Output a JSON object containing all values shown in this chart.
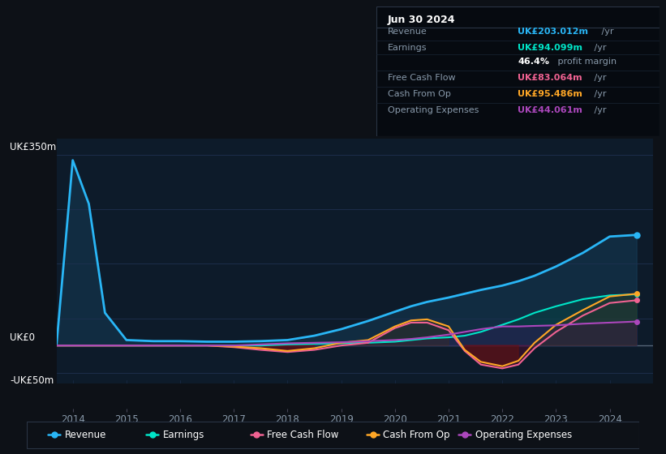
{
  "bg_color": "#0d1117",
  "chart_bg": "#0d1b2a",
  "text_color": "#8899aa",
  "ylim": [
    -70,
    380
  ],
  "years": [
    2013.7,
    2014.0,
    2014.3,
    2014.6,
    2015.0,
    2015.5,
    2016.0,
    2016.5,
    2017.0,
    2017.5,
    2018.0,
    2018.5,
    2019.0,
    2019.5,
    2020.0,
    2020.3,
    2020.6,
    2021.0,
    2021.3,
    2021.6,
    2022.0,
    2022.3,
    2022.6,
    2023.0,
    2023.5,
    2024.0,
    2024.5
  ],
  "revenue": [
    3,
    340,
    260,
    60,
    10,
    8,
    8,
    7,
    7,
    8,
    10,
    18,
    30,
    45,
    62,
    72,
    80,
    88,
    95,
    102,
    110,
    118,
    128,
    145,
    170,
    200,
    203
  ],
  "earnings": [
    0,
    0,
    0,
    0,
    0,
    0,
    0,
    0,
    0,
    0,
    2,
    3,
    4,
    5,
    7,
    10,
    13,
    15,
    18,
    25,
    38,
    48,
    60,
    72,
    85,
    92,
    94
  ],
  "free_cash_flow": [
    0,
    0,
    0,
    0,
    0,
    0,
    0,
    0,
    -3,
    -8,
    -12,
    -8,
    0,
    5,
    32,
    42,
    42,
    28,
    -10,
    -35,
    -42,
    -35,
    -5,
    25,
    55,
    78,
    83
  ],
  "cash_from_op": [
    0,
    0,
    0,
    0,
    0,
    0,
    0,
    0,
    -2,
    -5,
    -10,
    -5,
    5,
    10,
    35,
    46,
    48,
    35,
    -8,
    -30,
    -38,
    -28,
    5,
    38,
    65,
    90,
    95
  ],
  "operating_expenses": [
    0,
    0,
    0,
    0,
    0,
    0,
    0,
    0,
    0,
    2,
    4,
    5,
    6,
    8,
    10,
    12,
    15,
    20,
    25,
    30,
    35,
    35,
    36,
    37,
    40,
    42,
    44
  ],
  "revenue_color": "#29b6f6",
  "earnings_color": "#00e5c8",
  "fcf_color": "#f06292",
  "cashop_color": "#ffa726",
  "opex_color": "#ab47bc",
  "legend_items": [
    "Revenue",
    "Earnings",
    "Free Cash Flow",
    "Cash From Op",
    "Operating Expenses"
  ],
  "legend_colors": [
    "#29b6f6",
    "#00e5c8",
    "#f06292",
    "#ffa726",
    "#ab47bc"
  ],
  "info_box_title": "Jun 30 2024",
  "info_rows": [
    {
      "label": "Revenue",
      "value": "UK£203.012m",
      "unit": " /yr",
      "color": "#29b6f6"
    },
    {
      "label": "Earnings",
      "value": "UK£94.099m",
      "unit": " /yr",
      "color": "#00e5c8"
    },
    {
      "label": "",
      "value": "46.4%",
      "unit": " profit margin",
      "color": "#ffffff"
    },
    {
      "label": "Free Cash Flow",
      "value": "UK£83.064m",
      "unit": " /yr",
      "color": "#f06292"
    },
    {
      "label": "Cash From Op",
      "value": "UK£95.486m",
      "unit": " /yr",
      "color": "#ffa726"
    },
    {
      "label": "Operating Expenses",
      "value": "UK£44.061m",
      "unit": " /yr",
      "color": "#ab47bc"
    }
  ],
  "xlim": [
    2013.7,
    2024.8
  ],
  "xticks": [
    2014,
    2015,
    2016,
    2017,
    2018,
    2019,
    2020,
    2021,
    2022,
    2023,
    2024
  ],
  "grid_lines_y": [
    350,
    250,
    150,
    50,
    0,
    -50
  ],
  "hline_color": "#1e3050",
  "zero_line_color": "#556677"
}
